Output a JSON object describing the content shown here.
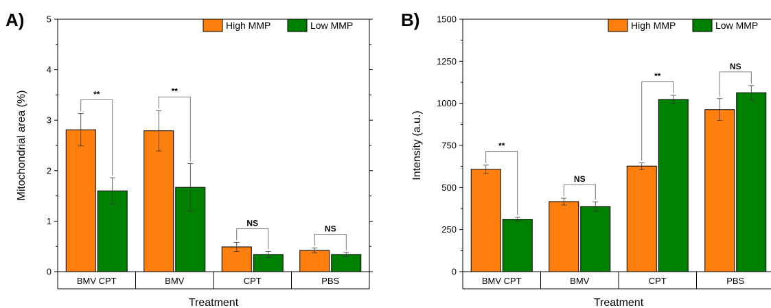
{
  "chart_data": [
    {
      "panel_label": "A)",
      "type": "bar",
      "xlabel": "Treatment",
      "ylabel": "Mitochondrial area (%)",
      "ylim": [
        0,
        5
      ],
      "yticks": [
        0,
        1,
        2,
        3,
        4,
        5
      ],
      "categories": [
        "BMV CPT",
        "BMV",
        "CPT",
        "PBS"
      ],
      "series": [
        {
          "name": "High MMP",
          "color": "#ff7f0e",
          "values": [
            2.81,
            2.79,
            0.49,
            0.42
          ],
          "errors": [
            0.32,
            0.4,
            0.09,
            0.05
          ]
        },
        {
          "name": "Low MMP",
          "color": "#008000",
          "values": [
            1.6,
            1.67,
            0.34,
            0.34
          ],
          "errors": [
            0.26,
            0.47,
            0.06,
            0.04
          ]
        }
      ],
      "significance": [
        "**",
        "**",
        "NS",
        "NS"
      ],
      "legend_position": "top-right"
    },
    {
      "panel_label": "B)",
      "type": "bar",
      "xlabel": "Treatment",
      "ylabel": "Intensity (a.u.)",
      "ylim": [
        0,
        1500
      ],
      "yticks": [
        0,
        250,
        500,
        750,
        1000,
        1250,
        1500
      ],
      "categories": [
        "BMV CPT",
        "BMV",
        "CPT",
        "PBS"
      ],
      "series": [
        {
          "name": "High MMP",
          "color": "#ff7f0e",
          "values": [
            608,
            416,
            627,
            963
          ],
          "errors": [
            25,
            20,
            20,
            65
          ]
        },
        {
          "name": "Low MMP",
          "color": "#008000",
          "values": [
            311,
            387,
            1023,
            1063
          ],
          "errors": [
            12,
            28,
            25,
            42
          ]
        }
      ],
      "significance": [
        "**",
        "NS",
        "**",
        "NS"
      ],
      "legend_position": "top-right"
    }
  ]
}
